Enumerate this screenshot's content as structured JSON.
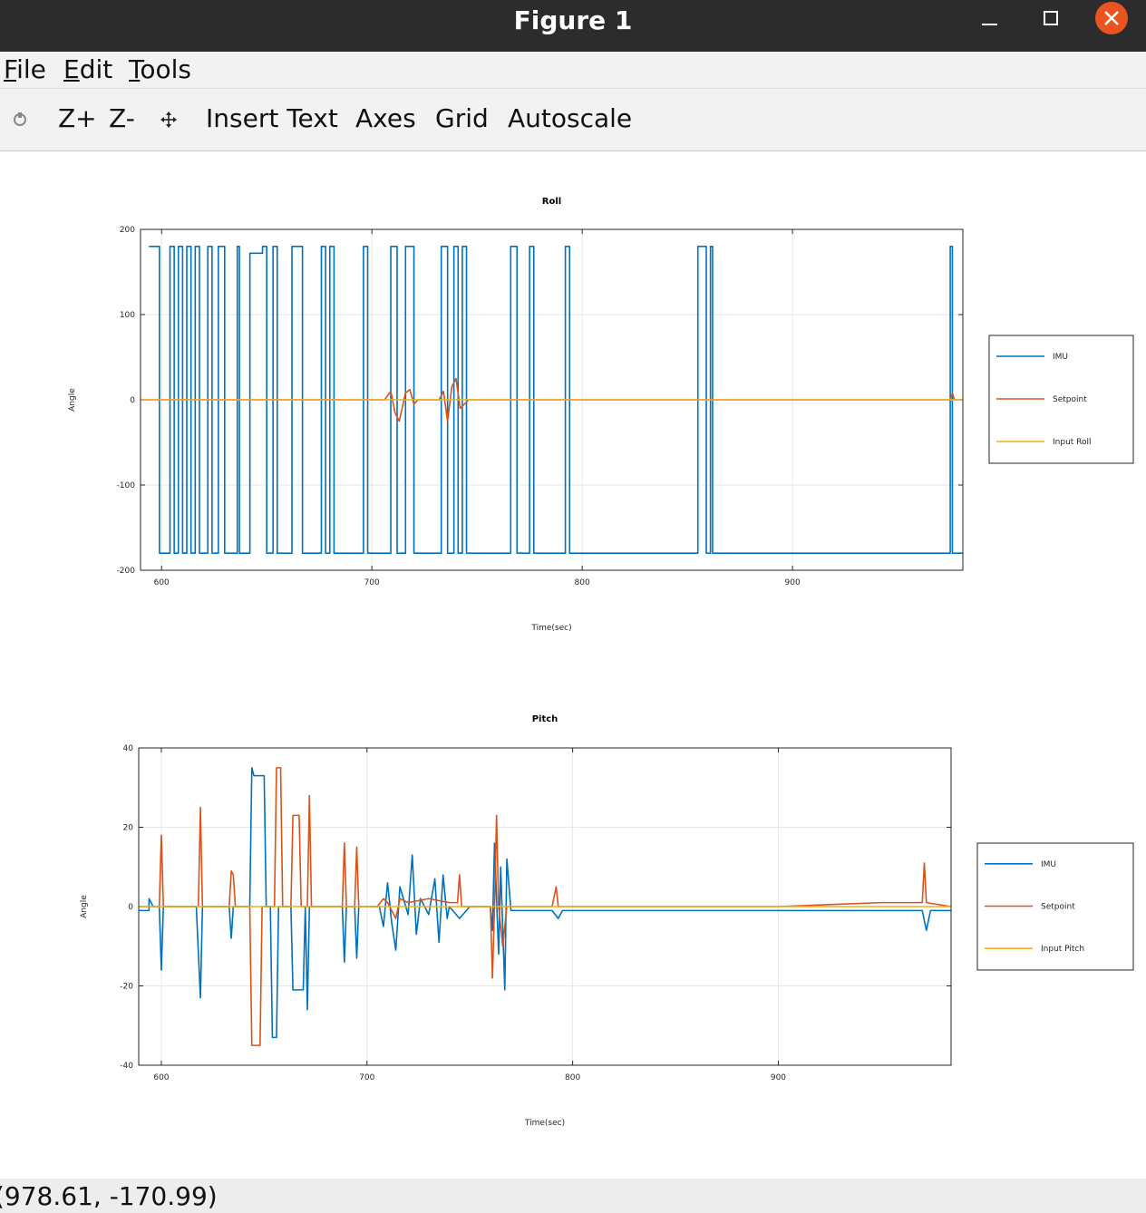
{
  "window": {
    "title": "Figure 1"
  },
  "menu": [
    "File",
    "Edit",
    "Tools"
  ],
  "toolbar": [
    "Z+",
    "Z-",
    "Insert Text",
    "Axes",
    "Grid",
    "Autoscale"
  ],
  "status": "(978.61, -170.99)",
  "chart_data": [
    {
      "type": "line",
      "title": "Roll",
      "xlabel": "Time(sec)",
      "ylabel": "Angle",
      "xlim": [
        590,
        981
      ],
      "xticks": [
        600,
        700,
        800,
        900
      ],
      "ylim": [
        -200,
        200
      ],
      "yticks": [
        -200,
        -100,
        0,
        100,
        200
      ],
      "grid": true,
      "legend": "right",
      "series": [
        {
          "name": "IMU",
          "color": "#0072bd",
          "x": [
            594,
            599,
            599,
            604,
            604,
            606,
            606,
            608,
            608,
            610,
            610,
            612,
            612,
            614,
            614,
            616,
            616,
            618,
            618,
            622,
            622,
            624,
            624,
            627,
            627,
            630,
            630,
            636,
            636,
            637,
            637,
            642,
            642,
            648,
            648,
            650,
            650,
            653,
            653,
            655,
            655,
            662,
            662,
            667,
            667,
            676,
            676,
            678,
            678,
            680,
            680,
            682,
            682,
            696,
            696,
            698,
            698,
            709,
            709,
            712,
            712,
            716,
            716,
            720,
            720,
            733,
            733,
            736,
            736,
            739,
            739,
            741,
            741,
            743,
            743,
            745,
            745,
            766,
            766,
            769,
            769,
            775,
            775,
            777,
            777,
            792,
            792,
            794,
            794,
            855,
            855,
            859,
            859,
            861,
            861,
            862,
            862,
            975,
            975,
            976,
            976,
            981
          ],
          "values": [
            180,
            180,
            -180,
            -180,
            180,
            180,
            -180,
            -180,
            180,
            180,
            -180,
            -180,
            180,
            180,
            -180,
            -180,
            180,
            180,
            -180,
            -180,
            180,
            180,
            -180,
            -180,
            180,
            180,
            -180,
            -180,
            180,
            180,
            -180,
            -180,
            172,
            172,
            180,
            180,
            -180,
            -180,
            180,
            180,
            -180,
            -180,
            180,
            180,
            -180,
            -180,
            180,
            180,
            -180,
            -180,
            180,
            180,
            -180,
            -180,
            180,
            180,
            -180,
            -180,
            180,
            180,
            -180,
            -180,
            180,
            180,
            -180,
            -180,
            180,
            180,
            -180,
            -180,
            180,
            180,
            -180,
            -180,
            180,
            180,
            -180,
            -180,
            180,
            180,
            -180,
            -180,
            180,
            180,
            -180,
            -180,
            180,
            180,
            -180,
            -180,
            180,
            180,
            -180,
            -180,
            180,
            180,
            -180,
            -180,
            180,
            180,
            -180,
            -180
          ]
        },
        {
          "name": "Setpoint",
          "color": "#d95319",
          "x": [
            590,
            706,
            709,
            711,
            713,
            716,
            718,
            720,
            722,
            732,
            734,
            736,
            738,
            740,
            742,
            746,
            975,
            976,
            977,
            981
          ],
          "values": [
            0,
            0,
            10,
            -15,
            -25,
            8,
            12,
            -5,
            0,
            0,
            10,
            -25,
            15,
            25,
            -10,
            0,
            0,
            8,
            0,
            0
          ]
        },
        {
          "name": "Input Roll",
          "color": "#edb120",
          "x": [
            590,
            981
          ],
          "values": [
            0,
            0
          ]
        }
      ]
    },
    {
      "type": "line",
      "title": "Pitch",
      "xlabel": "Time(sec)",
      "ylabel": "Angle",
      "xlim": [
        589,
        984
      ],
      "xticks": [
        600,
        700,
        800,
        900
      ],
      "ylim": [
        -40,
        40
      ],
      "yticks": [
        -40,
        -20,
        0,
        20,
        40
      ],
      "grid": true,
      "legend": "right",
      "series": [
        {
          "name": "IMU",
          "color": "#0072bd",
          "x": [
            589,
            594,
            594,
            596,
            599,
            600,
            601,
            617,
            619,
            620,
            633,
            634,
            635,
            643,
            644,
            645,
            650,
            651,
            653,
            654,
            656,
            657,
            663,
            664,
            669,
            670,
            671,
            672,
            688,
            689,
            690,
            694,
            695,
            696,
            706,
            708,
            710,
            712,
            714,
            716,
            720,
            722,
            724,
            726,
            730,
            733,
            735,
            737,
            739,
            740,
            745,
            750,
            760,
            761,
            762,
            764,
            765,
            767,
            768,
            770,
            780,
            790,
            793,
            795,
            850,
            900,
            950,
            970,
            972,
            974,
            984
          ],
          "values": [
            -1,
            -1,
            2,
            0,
            0,
            -16,
            0,
            0,
            -23,
            0,
            0,
            -8,
            0,
            0,
            35,
            33,
            33,
            0,
            0,
            -33,
            -33,
            0,
            0,
            -21,
            -21,
            0,
            -26,
            0,
            0,
            -14,
            0,
            0,
            -13,
            0,
            0,
            -5,
            6,
            -4,
            -11,
            5,
            -2,
            13,
            -7,
            2,
            -2,
            7,
            -9,
            8,
            -3,
            0,
            -3,
            0,
            0,
            -6,
            16,
            -12,
            10,
            -21,
            12,
            -1,
            -1,
            -1,
            -3,
            -1,
            -1,
            -1,
            -1,
            -1,
            -6,
            -1,
            -1
          ]
        },
        {
          "name": "Setpoint",
          "color": "#d95319",
          "x": [
            589,
            599,
            600,
            601,
            618,
            619,
            620,
            633,
            634,
            635,
            636,
            643,
            644,
            648,
            649,
            655,
            656,
            658,
            659,
            663,
            664,
            667,
            668,
            671,
            672,
            673,
            688,
            689,
            690,
            694,
            695,
            696,
            705,
            708,
            710,
            714,
            716,
            720,
            730,
            740,
            744,
            745,
            746,
            760,
            761,
            762,
            763,
            764,
            766,
            768,
            790,
            792,
            793,
            850,
            900,
            950,
            970,
            971,
            972,
            984
          ],
          "values": [
            0,
            0,
            18,
            0,
            0,
            25,
            0,
            0,
            9,
            8,
            0,
            0,
            -35,
            -35,
            0,
            0,
            35,
            35,
            0,
            0,
            23,
            23,
            0,
            0,
            28,
            0,
            0,
            16,
            0,
            0,
            15,
            0,
            0,
            2,
            1,
            -3,
            2,
            1,
            2,
            1,
            1,
            8,
            0,
            0,
            -18,
            0,
            23,
            0,
            -10,
            0,
            0,
            5,
            0,
            0,
            0,
            1,
            1,
            11,
            1,
            0
          ]
        },
        {
          "name": "Input Pitch",
          "color": "#edb120",
          "x": [
            589,
            984
          ],
          "values": [
            0,
            0
          ]
        }
      ]
    }
  ]
}
